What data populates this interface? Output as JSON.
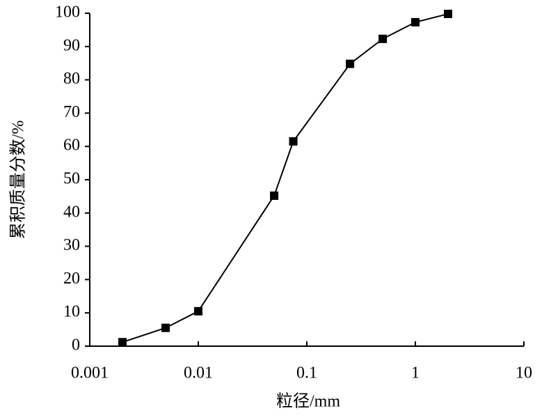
{
  "chart_data": {
    "type": "line",
    "x_label": "粒径/mm",
    "y_label": "累积质量分数/%",
    "x": [
      0.002,
      0.005,
      0.01,
      0.05,
      0.075,
      0.25,
      0.5,
      1,
      2
    ],
    "series": [
      {
        "color": "#000000",
        "values": [
          1.2,
          5.5,
          10.5,
          45.2,
          61.5,
          84.8,
          92.3,
          97.3,
          99.8
        ]
      }
    ],
    "x_log": true,
    "xlim": [
      0.001,
      10
    ],
    "xticks": [
      0.001,
      0.01,
      0.1,
      1,
      10
    ],
    "ylim": [
      0,
      100
    ],
    "yticks": [
      0,
      10,
      20,
      30,
      40,
      50,
      60,
      70,
      80,
      90,
      100
    ],
    "grid": false,
    "marker": "square"
  }
}
